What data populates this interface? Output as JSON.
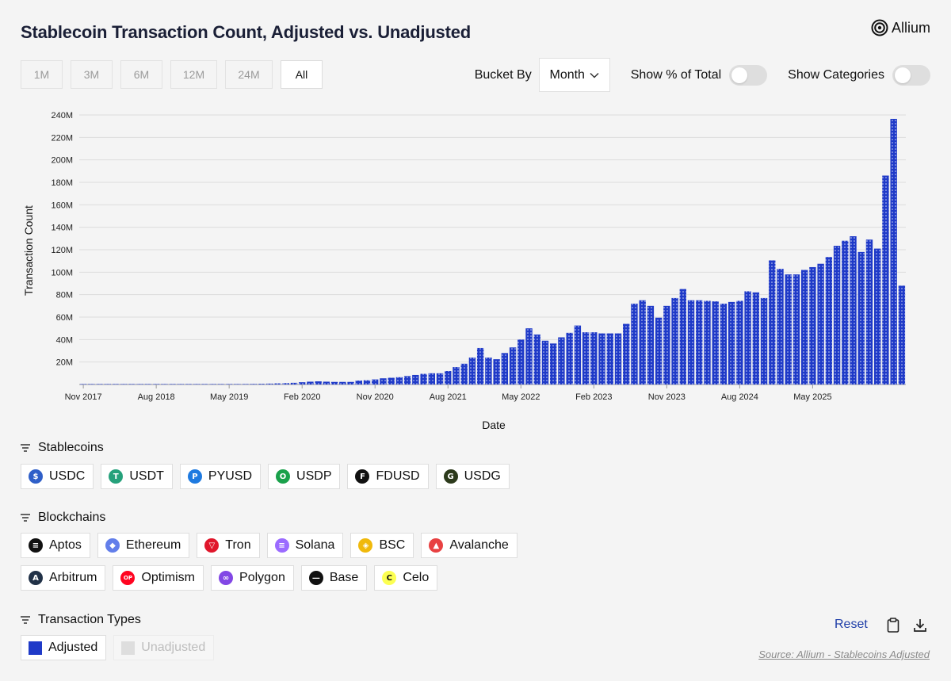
{
  "title": "Stablecoin Transaction Count, Adjusted vs. Unadjusted",
  "brand": {
    "name": "Allium",
    "icon": "allium-logo-icon"
  },
  "ranges": [
    {
      "label": "1M",
      "active": false
    },
    {
      "label": "3M",
      "active": false
    },
    {
      "label": "6M",
      "active": false
    },
    {
      "label": "12M",
      "active": false
    },
    {
      "label": "24M",
      "active": false
    },
    {
      "label": "All",
      "active": true
    }
  ],
  "controls": {
    "bucket_label": "Bucket By",
    "bucket_value": "Month",
    "show_pct_label": "Show % of Total",
    "show_pct_on": false,
    "show_categories_label": "Show Categories",
    "show_categories_on": false
  },
  "chart_data": {
    "type": "bar",
    "xlabel": "Date",
    "ylabel": "Transaction Count",
    "ylim": [
      0,
      240000000
    ],
    "ytick_labels": [
      "",
      "20M",
      "40M",
      "60M",
      "80M",
      "100M",
      "120M",
      "140M",
      "160M",
      "180M",
      "200M",
      "220M",
      "240M"
    ],
    "xtick_labels": [
      "Nov 2017",
      "Aug 2018",
      "May 2019",
      "Feb 2020",
      "Nov 2020",
      "Aug 2021",
      "May 2022",
      "Feb 2023",
      "Nov 2023",
      "Aug 2024",
      "May 2025"
    ],
    "grid": true,
    "bar_color": "#1f3ac8",
    "first_month": "Nov 2017",
    "series": [
      {
        "name": "Adjusted",
        "values": [
          0.1,
          0.1,
          0.1,
          0.1,
          0.1,
          0.1,
          0.1,
          0.1,
          0.1,
          0.1,
          0.1,
          0.1,
          0.1,
          0.1,
          0.1,
          0.1,
          0.2,
          0.2,
          0.3,
          0.3,
          0.4,
          0.5,
          0.6,
          0.8,
          1.0,
          1.2,
          1.5,
          2.0,
          2.5,
          2.8,
          2.5,
          2.3,
          2.3,
          2.3,
          3.5,
          3.8,
          4.5,
          5.5,
          6.0,
          6.5,
          7.5,
          8.5,
          9.5,
          10.0,
          10.0,
          12.0,
          15.5,
          18.5,
          24.0,
          32.5,
          24.0,
          22.5,
          28.0,
          33.0,
          40.0,
          50.0,
          44.5,
          39.0,
          36.5,
          42.0,
          46.0,
          52.5,
          46.5,
          46.5,
          45.5,
          45.5,
          45.5,
          54.0,
          72.0,
          75.0,
          70.0,
          59.5,
          70.0,
          77.0,
          85.0,
          75.0,
          75.0,
          74.5,
          74.0,
          72.0,
          73.5,
          74.5,
          83.0,
          82.0,
          77.0,
          110.5,
          103.0,
          98.0,
          98.0,
          102.0,
          104.5,
          107.5,
          113.5,
          123.5,
          128.0,
          132.0,
          118.0,
          129.0,
          121.0,
          186.0,
          236.5,
          88.0
        ]
      }
    ]
  },
  "stablecoins": {
    "heading": "Stablecoins",
    "items": [
      {
        "label": "USDC",
        "icon": "usdc-icon",
        "color": "#2f5fc8",
        "glyph": "$"
      },
      {
        "label": "USDT",
        "icon": "usdt-icon",
        "color": "#26a17b",
        "glyph": "T"
      },
      {
        "label": "PYUSD",
        "icon": "pyusd-icon",
        "color": "#1e7ae0",
        "glyph": "P"
      },
      {
        "label": "USDP",
        "icon": "usdp-icon",
        "color": "#1aa14b",
        "glyph": "O"
      },
      {
        "label": "FDUSD",
        "icon": "fdusd-icon",
        "color": "#111111",
        "glyph": "F"
      },
      {
        "label": "USDG",
        "icon": "usdg-icon",
        "color": "#2c3a1b",
        "glyph": "G"
      }
    ]
  },
  "blockchains": {
    "heading": "Blockchains",
    "row1": [
      {
        "label": "Aptos",
        "icon": "aptos-icon",
        "color": "#111111",
        "glyph": "≡"
      },
      {
        "label": "Ethereum",
        "icon": "ethereum-icon",
        "color": "#627eea",
        "glyph": "◆"
      },
      {
        "label": "Tron",
        "icon": "tron-icon",
        "color": "#e0162b",
        "glyph": "▽"
      },
      {
        "label": "Solana",
        "icon": "solana-icon",
        "color": "#9b6bff",
        "glyph": "≡"
      },
      {
        "label": "BSC",
        "icon": "bsc-icon",
        "color": "#f0b90b",
        "glyph": "◈"
      },
      {
        "label": "Avalanche",
        "icon": "avalanche-icon",
        "color": "#e84142",
        "glyph": "▲"
      }
    ],
    "row2": [
      {
        "label": "Arbitrum",
        "icon": "arbitrum-icon",
        "color": "#213147",
        "glyph": "A"
      },
      {
        "label": "Optimism",
        "icon": "optimism-icon",
        "color": "#ff0420",
        "glyph": "OP"
      },
      {
        "label": "Polygon",
        "icon": "polygon-icon",
        "color": "#8247e5",
        "glyph": "∞"
      },
      {
        "label": "Base",
        "icon": "base-icon",
        "color": "#111111",
        "glyph": "—"
      },
      {
        "label": "Celo",
        "icon": "celo-icon",
        "color": "#fcff52",
        "glyph": "C"
      }
    ]
  },
  "transaction_types": {
    "heading": "Transaction Types",
    "items": [
      {
        "label": "Adjusted",
        "color": "#1f3ac8",
        "on": true
      },
      {
        "label": "Unadjusted",
        "color": "#dedede",
        "on": false
      }
    ]
  },
  "actions": {
    "reset_label": "Reset",
    "copy_icon": "clipboard-icon",
    "download_icon": "download-icon"
  },
  "source": "Source: Allium - Stablecoins Adjusted"
}
